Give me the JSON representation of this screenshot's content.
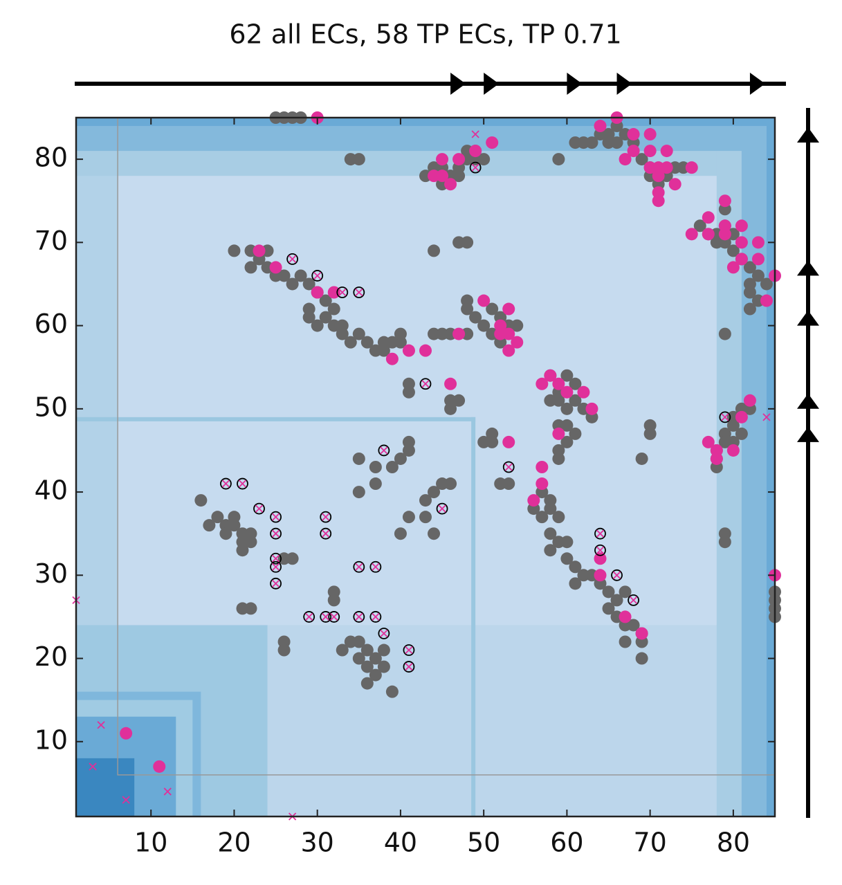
{
  "chart_data": {
    "type": "scatter",
    "title": "62 all ECs, 58 TP ECs, TP 0.71",
    "xlim": [
      1,
      85
    ],
    "ylim": [
      1,
      85
    ],
    "xticks": [
      10,
      20,
      30,
      40,
      50,
      60,
      70,
      80
    ],
    "yticks": [
      10,
      20,
      30,
      40,
      50,
      60,
      70,
      80
    ],
    "frame": {
      "x": [
        6,
        85
      ],
      "y": [
        6,
        85
      ],
      "color": "#999999"
    },
    "blocks": [
      {
        "x": [
          1,
          85
        ],
        "y": [
          1,
          85
        ],
        "color": "#c6dbef"
      },
      {
        "x": [
          1,
          85
        ],
        "y": [
          1,
          24
        ],
        "color": "#bcd6eb"
      },
      {
        "x": [
          1,
          6
        ],
        "y": [
          1,
          85
        ],
        "color": "#b2d2e8"
      },
      {
        "x": [
          1,
          85
        ],
        "y": [
          78,
          85
        ],
        "color": "#a8cde4"
      },
      {
        "x": [
          78,
          85
        ],
        "y": [
          1,
          85
        ],
        "color": "#a8cde4"
      },
      {
        "x": [
          1,
          85
        ],
        "y": [
          81,
          85
        ],
        "color": "#84b9dc"
      },
      {
        "x": [
          81,
          85
        ],
        "y": [
          1,
          85
        ],
        "color": "#84b9dc"
      },
      {
        "x": [
          1,
          85
        ],
        "y": [
          84,
          85
        ],
        "color": "#6aaad6"
      },
      {
        "x": [
          84,
          85
        ],
        "y": [
          1,
          85
        ],
        "color": "#6aaad6"
      },
      {
        "x": [
          48.5,
          49
        ],
        "y": [
          1,
          49
        ],
        "color": "#9ac7e0"
      },
      {
        "x": [
          1,
          49
        ],
        "y": [
          48.5,
          49
        ],
        "color": "#9ac7e0"
      },
      {
        "x": [
          1,
          24
        ],
        "y": [
          1,
          24
        ],
        "color": "#9ec9e2"
      },
      {
        "x": [
          1,
          16
        ],
        "y": [
          1,
          16
        ],
        "color": "#7fb7dc"
      },
      {
        "x": [
          1,
          15
        ],
        "y": [
          1,
          15
        ],
        "color": "#a0cbe3"
      },
      {
        "x": [
          1,
          13
        ],
        "y": [
          1,
          13
        ],
        "color": "#6aaad6"
      },
      {
        "x": [
          1,
          8
        ],
        "y": [
          1,
          8
        ],
        "color": "#3a87c0"
      }
    ],
    "top_arrows": [
      47,
      51,
      61,
      67,
      83
    ],
    "right_arrows": [
      83,
      67,
      61,
      51,
      47
    ],
    "series": [
      {
        "marker": "dot",
        "color": "#666666",
        "x": [
          25,
          26,
          27,
          28,
          34,
          35,
          43,
          44,
          45,
          46,
          47,
          48,
          49,
          50,
          45,
          47,
          48,
          49,
          59,
          61,
          62,
          63,
          64,
          65,
          66,
          65,
          66,
          67,
          68,
          69,
          70,
          71,
          72,
          71,
          70,
          73,
          74,
          47,
          48,
          44,
          76,
          77,
          78,
          79,
          80,
          79,
          78,
          80,
          81,
          82,
          83,
          84,
          82,
          82,
          83,
          82,
          79,
          79,
          81,
          82,
          80,
          80,
          79,
          80,
          78,
          78,
          78,
          79,
          81,
          85,
          85,
          85,
          85,
          20,
          22,
          24,
          22,
          23,
          24,
          25,
          26,
          27,
          28,
          29,
          30,
          31,
          32,
          29,
          29,
          30,
          31,
          32,
          33,
          34,
          33,
          35,
          36,
          37,
          38,
          39,
          40,
          40,
          38,
          44,
          45,
          46,
          41,
          41,
          46,
          46,
          47,
          48,
          48,
          49,
          50,
          51,
          52,
          51,
          53,
          54,
          52,
          48,
          58,
          59,
          60,
          61,
          62,
          63,
          60,
          59,
          58,
          61,
          59,
          59,
          59,
          60,
          61,
          60,
          56,
          57,
          57,
          58,
          58,
          59,
          58,
          59,
          58,
          60,
          60,
          61,
          62,
          61,
          63,
          64,
          65,
          66,
          65,
          66,
          67,
          68,
          69,
          69,
          69,
          67,
          67,
          70,
          70,
          69,
          79,
          79,
          50,
          51,
          51,
          52,
          53,
          16,
          17,
          18,
          19,
          19,
          20,
          20,
          21,
          21,
          22,
          21,
          22,
          21,
          22,
          26,
          27,
          26,
          26,
          32,
          32,
          33,
          34,
          35,
          35,
          36,
          36,
          37,
          37,
          38,
          38,
          36,
          39,
          35,
          35,
          37,
          37,
          39,
          40,
          41,
          41,
          40,
          41,
          43,
          44,
          44,
          43,
          45,
          46
        ],
        "y": [
          85,
          85,
          85,
          85,
          80,
          80,
          78,
          79,
          79,
          78,
          79,
          80,
          81,
          80,
          77,
          78,
          81,
          80,
          80,
          82,
          82,
          82,
          83,
          83,
          84,
          82,
          82,
          83,
          82,
          80,
          79,
          78,
          78,
          77,
          78,
          79,
          79,
          70,
          70,
          69,
          72,
          71,
          71,
          72,
          71,
          70,
          70,
          69,
          68,
          67,
          66,
          65,
          65,
          64,
          63,
          62,
          74,
          59,
          50,
          50,
          49,
          48,
          47,
          46,
          45,
          44,
          43,
          46,
          47,
          28,
          27,
          26,
          25,
          69,
          69,
          69,
          67,
          68,
          67,
          66,
          66,
          65,
          66,
          65,
          64,
          63,
          62,
          62,
          61,
          60,
          61,
          60,
          59,
          58,
          60,
          59,
          58,
          57,
          57,
          58,
          58,
          59,
          58,
          59,
          59,
          59,
          53,
          52,
          51,
          50,
          51,
          63,
          62,
          61,
          60,
          59,
          58,
          62,
          60,
          60,
          61,
          59,
          54,
          52,
          54,
          51,
          50,
          49,
          50,
          51,
          51,
          53,
          48,
          45,
          44,
          48,
          47,
          46,
          38,
          37,
          40,
          39,
          38,
          37,
          35,
          34,
          33,
          34,
          32,
          31,
          30,
          29,
          30,
          29,
          28,
          27,
          26,
          25,
          24,
          24,
          23,
          22,
          20,
          22,
          28,
          48,
          47,
          44,
          35,
          34,
          46,
          47,
          46,
          41,
          41,
          39,
          36,
          37,
          36,
          35,
          37,
          36,
          35,
          34,
          35,
          33,
          34,
          26,
          26,
          32,
          32,
          22,
          21,
          28,
          27,
          21,
          22,
          22,
          20,
          19,
          21,
          18,
          20,
          21,
          19,
          17,
          16,
          44,
          40,
          43,
          41,
          43,
          44,
          45,
          46,
          35,
          37,
          39,
          40,
          35,
          37,
          41,
          41
        ]
      },
      {
        "marker": "dot",
        "color": "#e0309a",
        "x": [
          30,
          47,
          49,
          51,
          44,
          45,
          46,
          45,
          64,
          66,
          68,
          70,
          68,
          67,
          70,
          72,
          70,
          71,
          72,
          71,
          71,
          71,
          73,
          75,
          75,
          77,
          77,
          79,
          79,
          79,
          81,
          80,
          81,
          81,
          83,
          83,
          85,
          84,
          23,
          25,
          30,
          32,
          39,
          41,
          43,
          47,
          46,
          50,
          52,
          53,
          52,
          53,
          54,
          53,
          57,
          58,
          59,
          60,
          62,
          63,
          59,
          53,
          57,
          57,
          56,
          64,
          64,
          67,
          69,
          82,
          81,
          77,
          78,
          78,
          80,
          85,
          7,
          11
        ],
        "y": [
          85,
          80,
          81,
          82,
          78,
          78,
          77,
          80,
          84,
          85,
          83,
          83,
          81,
          80,
          81,
          81,
          79,
          79,
          79,
          78,
          76,
          75,
          77,
          79,
          71,
          73,
          71,
          75,
          72,
          71,
          72,
          67,
          70,
          68,
          70,
          68,
          66,
          63,
          69,
          67,
          64,
          64,
          56,
          57,
          57,
          59,
          53,
          63,
          59,
          62,
          60,
          59,
          58,
          57,
          53,
          54,
          53,
          52,
          52,
          50,
          47,
          46,
          43,
          41,
          39,
          32,
          30,
          25,
          23,
          51,
          49,
          46,
          45,
          44,
          45,
          30,
          11,
          7
        ]
      },
      {
        "marker": "x",
        "color": "#e0309a",
        "x": [
          1,
          49,
          84,
          4,
          3,
          7,
          12,
          27
        ],
        "y": [
          27,
          83,
          49,
          12,
          7,
          3,
          4,
          1
        ]
      },
      {
        "marker": "ring-x",
        "color": "#e0309a",
        "x": [
          27,
          30,
          33,
          35,
          49,
          43,
          53,
          45,
          38,
          41,
          41,
          19,
          21,
          23,
          25,
          25,
          25,
          25,
          25,
          31,
          31,
          29,
          31,
          32,
          35,
          37,
          35,
          37,
          38,
          64,
          64,
          66,
          68,
          79
        ],
        "y": [
          68,
          66,
          64,
          64,
          79,
          53,
          43,
          38,
          45,
          21,
          19,
          41,
          41,
          38,
          37,
          35,
          32,
          31,
          29,
          37,
          35,
          25,
          25,
          25,
          31,
          31,
          25,
          25,
          23,
          35,
          33,
          30,
          27,
          49
        ]
      }
    ]
  }
}
